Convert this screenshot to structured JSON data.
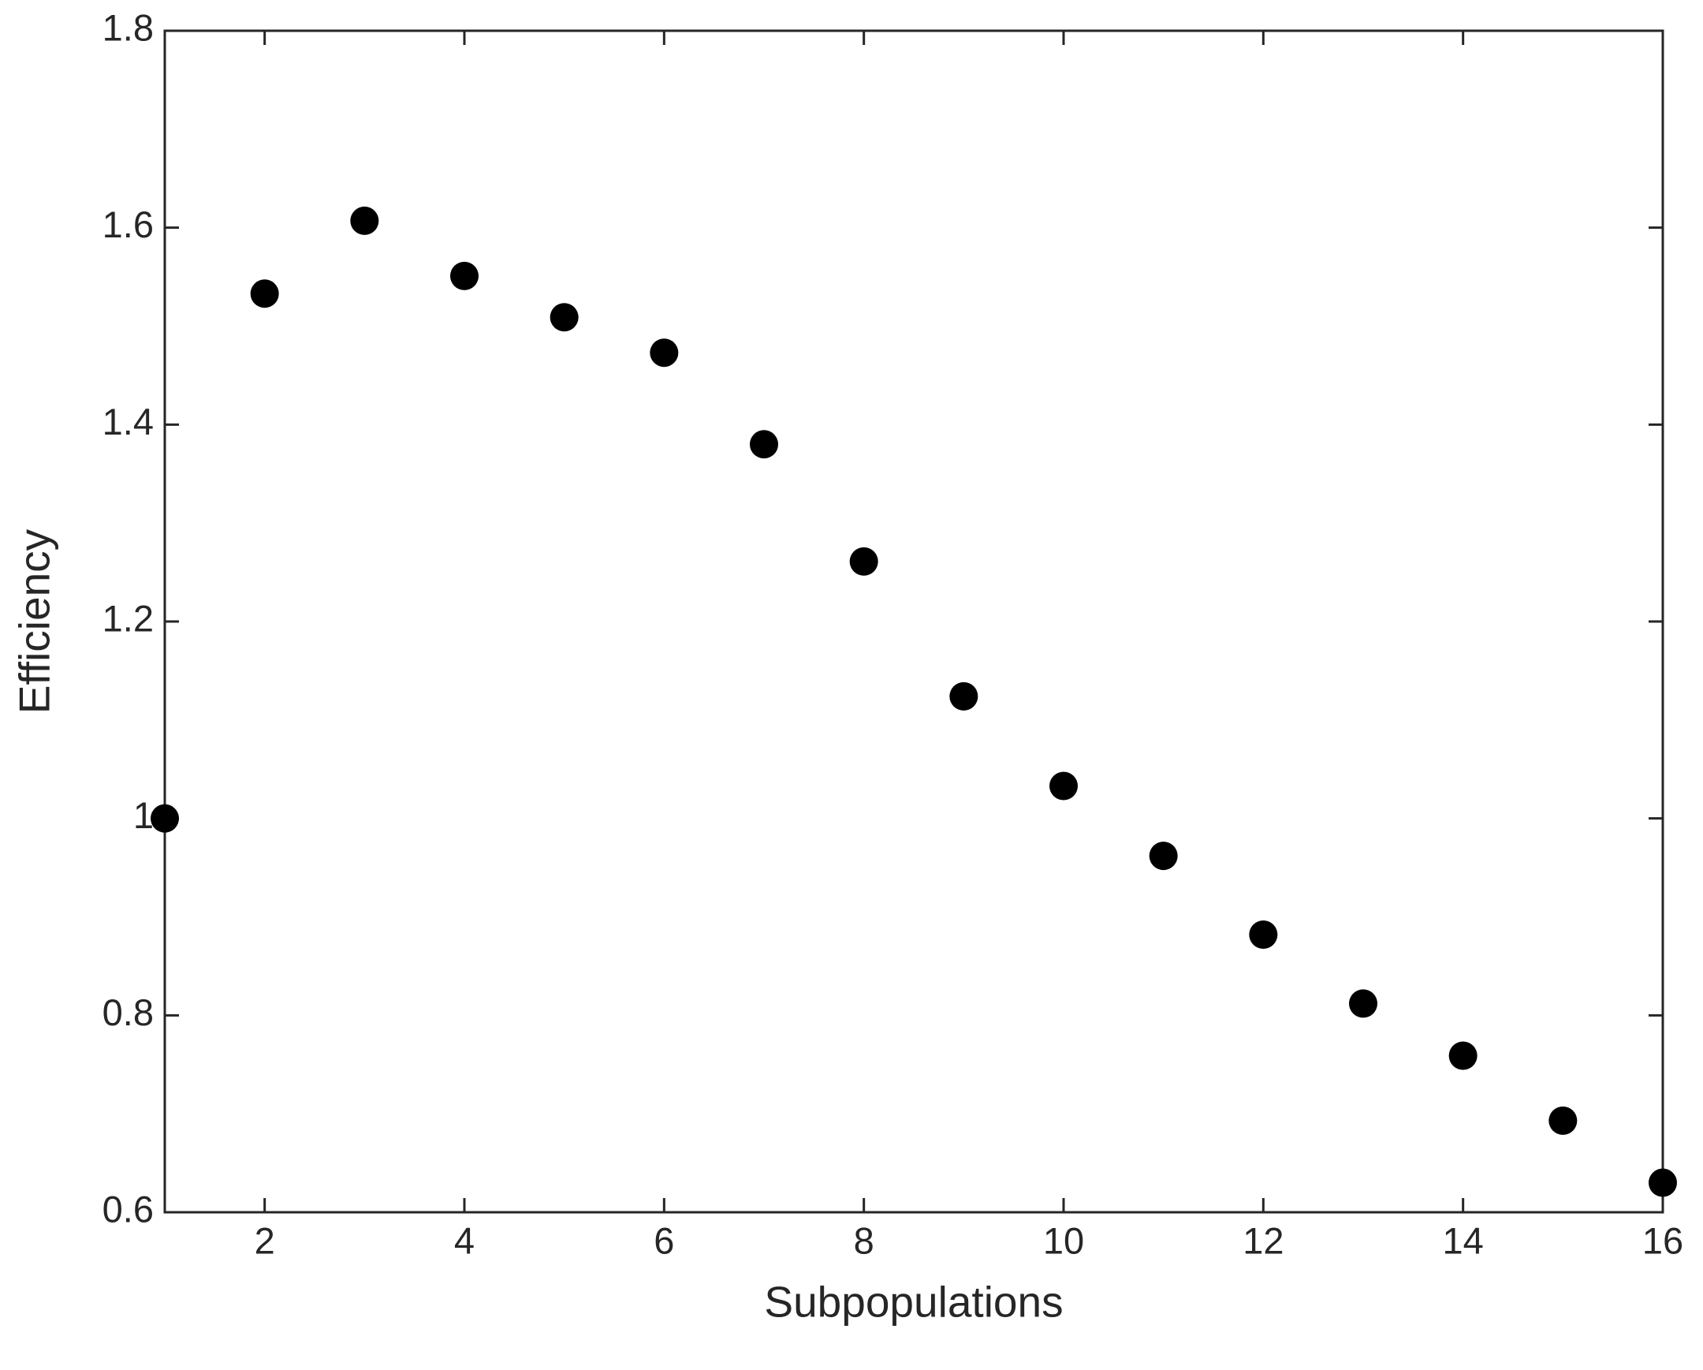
{
  "chart_data": {
    "type": "scatter",
    "x_label": "Subpopulations",
    "y_label": "Efficiency",
    "x": [
      1,
      2,
      3,
      4,
      5,
      6,
      7,
      8,
      9,
      10,
      11,
      12,
      13,
      14,
      15,
      16
    ],
    "values": [
      1.0,
      1.533,
      1.607,
      1.551,
      1.509,
      1.473,
      1.38,
      1.261,
      1.124,
      1.033,
      0.962,
      0.882,
      0.812,
      0.759,
      0.693,
      0.63
    ],
    "color": "#000000",
    "xlim": [
      1,
      16
    ],
    "xticks": [
      2,
      4,
      6,
      8,
      10,
      12,
      14,
      16
    ],
    "ylim": [
      0.6,
      1.8
    ],
    "yticks": [
      0.6,
      0.8,
      1,
      1.2,
      1.4,
      1.6,
      1.8
    ],
    "grid": false
  }
}
